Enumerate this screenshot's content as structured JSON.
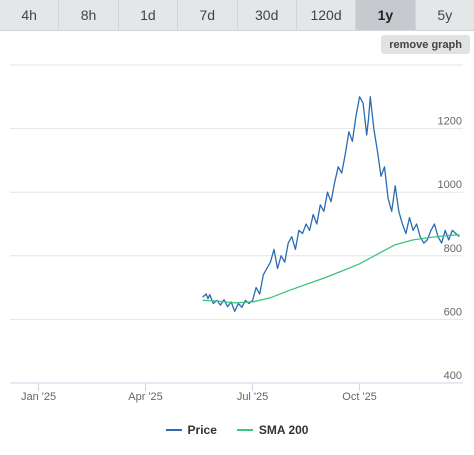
{
  "tabs": [
    {
      "label": "4h",
      "active": false
    },
    {
      "label": "8h",
      "active": false
    },
    {
      "label": "1d",
      "active": false
    },
    {
      "label": "7d",
      "active": false
    },
    {
      "label": "30d",
      "active": false
    },
    {
      "label": "120d",
      "active": false
    },
    {
      "label": "1y",
      "active": true
    },
    {
      "label": "5y",
      "active": false
    }
  ],
  "remove_graph_label": "remove graph",
  "legend": {
    "price_label": "Price",
    "sma_label": "SMA 200"
  },
  "colors": {
    "price": "#2b6cb0",
    "sma": "#3cc47c"
  },
  "chart_data": {
    "type": "line",
    "x_ticks": [
      "Jan '25",
      "Apr '25",
      "Jul '25",
      "Oct '25"
    ],
    "x_tick_pos": [
      0.0,
      3.0,
      6.0,
      9.0
    ],
    "xlim": [
      -0.8,
      11.9
    ],
    "ylim": [
      400,
      1400
    ],
    "y_ticks": [
      400,
      600,
      800,
      1000,
      1200
    ],
    "grid": true,
    "legend_position": "bottom",
    "series": [
      {
        "name": "Price",
        "color": "#2b6cb0",
        "x": [
          4.6,
          4.7,
          4.75,
          4.8,
          4.9,
          5.0,
          5.1,
          5.2,
          5.3,
          5.4,
          5.5,
          5.6,
          5.7,
          5.8,
          5.9,
          6.0,
          6.1,
          6.2,
          6.3,
          6.4,
          6.5,
          6.6,
          6.7,
          6.8,
          6.9,
          7.0,
          7.1,
          7.2,
          7.3,
          7.4,
          7.5,
          7.6,
          7.7,
          7.8,
          7.9,
          8.0,
          8.1,
          8.2,
          8.3,
          8.4,
          8.5,
          8.6,
          8.7,
          8.8,
          8.9,
          9.0,
          9.1,
          9.2,
          9.25,
          9.3,
          9.4,
          9.5,
          9.6,
          9.7,
          9.8,
          9.9,
          10.0,
          10.1,
          10.2,
          10.3,
          10.4,
          10.5,
          10.6,
          10.7,
          10.8,
          10.9,
          11.0,
          11.1,
          11.2,
          11.3,
          11.4,
          11.5,
          11.6,
          11.7,
          11.8
        ],
        "values": [
          670,
          680,
          665,
          678,
          650,
          660,
          645,
          662,
          640,
          655,
          625,
          650,
          638,
          660,
          650,
          660,
          700,
          680,
          740,
          760,
          780,
          820,
          760,
          800,
          780,
          840,
          860,
          820,
          880,
          870,
          900,
          880,
          930,
          900,
          960,
          940,
          1000,
          970,
          1030,
          1080,
          1060,
          1120,
          1190,
          1160,
          1240,
          1300,
          1280,
          1180,
          1230,
          1300,
          1200,
          1130,
          1050,
          1080,
          980,
          940,
          1020,
          940,
          900,
          870,
          920,
          880,
          900,
          860,
          840,
          850,
          880,
          900,
          860,
          840,
          880,
          850,
          880,
          870,
          860
        ],
        "values_note": ""
      },
      {
        "name": "SMA 200",
        "color": "#3cc47c",
        "x": [
          4.6,
          5.0,
          5.5,
          6.0,
          6.5,
          7.0,
          7.5,
          8.0,
          8.5,
          9.0,
          9.5,
          10.0,
          10.5,
          11.0,
          11.5,
          11.8
        ],
        "values": [
          660,
          658,
          652,
          655,
          668,
          690,
          710,
          730,
          752,
          775,
          805,
          835,
          850,
          858,
          864,
          866
        ]
      }
    ]
  }
}
